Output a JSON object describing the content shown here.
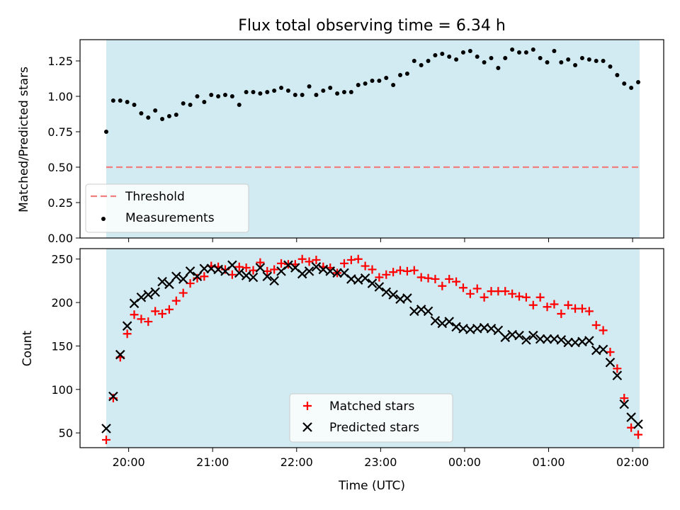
{
  "title": "Flux total observing time = 6.34 h",
  "colors": {
    "shade": "#add8e6",
    "threshold": "#f08080",
    "measurements": "#000000",
    "matched": "#ff0000",
    "predicted": "#000000"
  },
  "chart_data": [
    {
      "type": "scatter",
      "ylabel": "Matched/Predicted stars",
      "ylim": [
        0,
        1.4
      ],
      "yticks": [
        "0.00",
        "0.25",
        "0.50",
        "0.75",
        "1.00",
        "1.25"
      ],
      "xticks": [
        "20:00",
        "21:00",
        "22:00",
        "23:00",
        "00:00",
        "01:00",
        "02:00"
      ],
      "xtick_labels_shown": false,
      "threshold": {
        "name": "Threshold",
        "value": 0.5,
        "style": "dashed"
      },
      "legend": {
        "location": "lower-left",
        "entries": [
          "Threshold",
          "Measurements"
        ]
      },
      "series": [
        {
          "name": "Measurements",
          "marker": "dot",
          "x": [
            "19:44",
            "19:49",
            "19:54",
            "19:59",
            "20:04",
            "20:09",
            "20:14",
            "20:19",
            "20:24",
            "20:29",
            "20:34",
            "20:39",
            "20:44",
            "20:49",
            "20:54",
            "20:59",
            "21:04",
            "21:09",
            "21:14",
            "21:19",
            "21:24",
            "21:29",
            "21:34",
            "21:39",
            "21:44",
            "21:49",
            "21:54",
            "21:59",
            "22:04",
            "22:09",
            "22:14",
            "22:19",
            "22:24",
            "22:29",
            "22:34",
            "22:39",
            "22:44",
            "22:49",
            "22:54",
            "22:59",
            "23:04",
            "23:09",
            "23:14",
            "23:19",
            "23:24",
            "23:29",
            "23:34",
            "23:39",
            "23:44",
            "23:49",
            "23:54",
            "23:59",
            "00:04",
            "00:09",
            "00:14",
            "00:19",
            "00:24",
            "00:29",
            "00:34",
            "00:39",
            "00:44",
            "00:49",
            "00:54",
            "00:59",
            "01:04",
            "01:09",
            "01:14",
            "01:19",
            "01:24",
            "01:29",
            "01:34",
            "01:39",
            "01:44",
            "01:49",
            "01:54",
            "01:59",
            "02:04"
          ],
          "y": [
            0.75,
            0.97,
            0.97,
            0.96,
            0.94,
            0.88,
            0.85,
            0.9,
            0.84,
            0.86,
            0.87,
            0.95,
            0.94,
            1.0,
            0.96,
            1.01,
            1.0,
            1.01,
            1.0,
            0.94,
            1.03,
            1.03,
            1.02,
            1.03,
            1.04,
            1.06,
            1.04,
            1.01,
            1.01,
            1.07,
            1.01,
            1.04,
            1.06,
            1.02,
            1.03,
            1.03,
            1.08,
            1.09,
            1.11,
            1.11,
            1.13,
            1.08,
            1.15,
            1.16,
            1.25,
            1.22,
            1.25,
            1.29,
            1.3,
            1.28,
            1.26,
            1.31,
            1.32,
            1.28,
            1.24,
            1.27,
            1.2,
            1.27,
            1.33,
            1.31,
            1.31,
            1.33,
            1.27,
            1.24,
            1.32,
            1.24,
            1.26,
            1.22,
            1.27,
            1.26,
            1.25,
            1.25,
            1.21,
            1.15,
            1.09,
            1.06,
            1.1
          ]
        }
      ],
      "shaded_range": [
        "19:44",
        "02:05"
      ]
    },
    {
      "type": "scatter",
      "xlabel": "Time (UTC)",
      "ylabel": "Count",
      "ylim": [
        33,
        262
      ],
      "yticks": [
        "50",
        "100",
        "150",
        "200",
        "250"
      ],
      "xticks": [
        "20:00",
        "21:00",
        "22:00",
        "23:00",
        "00:00",
        "01:00",
        "02:00"
      ],
      "legend": {
        "location": "lower-center",
        "entries": [
          "Matched stars",
          "Predicted stars"
        ]
      },
      "shaded_range": [
        "19:44",
        "02:05"
      ],
      "series": [
        {
          "name": "Matched stars",
          "marker": "plus",
          "x": [
            "19:44",
            "19:49",
            "19:54",
            "19:59",
            "20:04",
            "20:09",
            "20:14",
            "20:19",
            "20:24",
            "20:29",
            "20:34",
            "20:39",
            "20:44",
            "20:49",
            "20:54",
            "20:59",
            "21:04",
            "21:09",
            "21:14",
            "21:19",
            "21:24",
            "21:29",
            "21:34",
            "21:39",
            "21:44",
            "21:49",
            "21:54",
            "21:59",
            "22:04",
            "22:09",
            "22:14",
            "22:19",
            "22:24",
            "22:29",
            "22:34",
            "22:39",
            "22:44",
            "22:49",
            "22:54",
            "22:59",
            "23:04",
            "23:09",
            "23:14",
            "23:19",
            "23:24",
            "23:29",
            "23:34",
            "23:39",
            "23:44",
            "23:49",
            "23:54",
            "23:59",
            "00:04",
            "00:09",
            "00:14",
            "00:19",
            "00:24",
            "00:29",
            "00:34",
            "00:39",
            "00:44",
            "00:49",
            "00:54",
            "00:59",
            "01:04",
            "01:09",
            "01:14",
            "01:19",
            "01:24",
            "01:29",
            "01:34",
            "01:39",
            "01:44",
            "01:49",
            "01:54",
            "01:59",
            "02:04"
          ],
          "y": [
            42,
            90,
            137,
            164,
            186,
            181,
            178,
            190,
            187,
            192,
            202,
            211,
            222,
            228,
            230,
            242,
            241,
            238,
            232,
            241,
            240,
            237,
            246,
            236,
            238,
            245,
            244,
            244,
            250,
            247,
            249,
            241,
            240,
            234,
            245,
            249,
            250,
            242,
            238,
            229,
            232,
            235,
            237,
            236,
            237,
            229,
            228,
            227,
            219,
            227,
            224,
            217,
            210,
            216,
            206,
            213,
            213,
            213,
            210,
            207,
            206,
            197,
            206,
            195,
            198,
            187,
            197,
            193,
            193,
            190,
            174,
            168,
            143,
            124,
            90,
            56,
            48
          ]
        },
        {
          "name": "Predicted stars",
          "marker": "x",
          "x": [
            "19:44",
            "19:49",
            "19:54",
            "19:59",
            "20:04",
            "20:09",
            "20:14",
            "20:19",
            "20:24",
            "20:29",
            "20:34",
            "20:39",
            "20:44",
            "20:49",
            "20:54",
            "20:59",
            "21:04",
            "21:09",
            "21:14",
            "21:19",
            "21:24",
            "21:29",
            "21:34",
            "21:39",
            "21:44",
            "21:49",
            "21:54",
            "21:59",
            "22:04",
            "22:09",
            "22:14",
            "22:19",
            "22:24",
            "22:29",
            "22:34",
            "22:39",
            "22:44",
            "22:49",
            "22:54",
            "22:59",
            "23:04",
            "23:09",
            "23:14",
            "23:19",
            "23:24",
            "23:29",
            "23:34",
            "23:39",
            "23:44",
            "23:49",
            "23:54",
            "23:59",
            "00:04",
            "00:09",
            "00:14",
            "00:19",
            "00:24",
            "00:29",
            "00:34",
            "00:39",
            "00:44",
            "00:49",
            "00:54",
            "00:59",
            "01:04",
            "01:09",
            "01:14",
            "01:19",
            "01:24",
            "01:29",
            "01:34",
            "01:39",
            "01:44",
            "01:49",
            "01:54",
            "01:59",
            "02:04"
          ],
          "y": [
            55,
            92,
            140,
            173,
            199,
            206,
            209,
            212,
            224,
            221,
            230,
            227,
            236,
            230,
            239,
            239,
            238,
            236,
            243,
            234,
            231,
            229,
            240,
            230,
            225,
            236,
            243,
            240,
            233,
            236,
            241,
            238,
            236,
            234,
            234,
            227,
            226,
            228,
            222,
            218,
            212,
            209,
            204,
            205,
            190,
            192,
            190,
            179,
            176,
            178,
            172,
            170,
            169,
            170,
            171,
            170,
            168,
            160,
            163,
            162,
            157,
            162,
            158,
            158,
            158,
            157,
            154,
            154,
            155,
            156,
            145,
            146,
            131,
            116,
            83,
            68,
            60
          ]
        }
      ]
    }
  ]
}
